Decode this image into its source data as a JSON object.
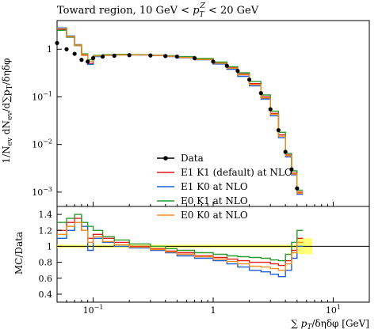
{
  "figure": {
    "title": "Toward region, 10 GeV < p_T^Z < 20 GeV",
    "xlabel": "∑ p_T/δηδφ [GeV]",
    "ylabel_top": "1/N_ev dN_ev/d∑p_T/δηδφ",
    "ylabel_bottom": "MC/Data",
    "legend_entries": [
      "Data",
      "E1 K1 (default) at NLO",
      "E1 K0 at NLO",
      "E0 K1 at NLO",
      "E0 K0 at NLO"
    ],
    "colors": {
      "data": "#000000",
      "e1k1": "#e41a1c",
      "e1k0": "#1f5fd6",
      "e0k1": "#2a9a2a",
      "e0k0": "#f28e1c",
      "band": "#ffff66"
    }
  },
  "chart_data": [
    {
      "panel": "main",
      "type": "line",
      "x_scale": "log",
      "y_scale": "log",
      "xlim": [
        0.05,
        20
      ],
      "ylim": [
        0.0005,
        4
      ],
      "x_ticklabels": [
        "10^-1",
        "1",
        "10^1"
      ],
      "y_ticklabels": [
        "10^-3",
        "10^-2",
        "10^-1",
        "1"
      ],
      "legend_placement": "lower-center",
      "x": [
        0.05,
        0.06,
        0.07,
        0.08,
        0.09,
        0.1,
        0.12,
        0.15,
        0.2,
        0.3,
        0.4,
        0.5,
        0.7,
        1.0,
        1.3,
        1.6,
        2.0,
        2.5,
        3.0,
        3.5,
        4.0,
        4.5,
        5.0
      ],
      "series": [
        {
          "name": "Data",
          "values": [
            1.35,
            1.0,
            0.8,
            0.6,
            0.55,
            0.65,
            0.7,
            0.73,
            0.75,
            0.74,
            0.72,
            0.7,
            0.65,
            0.55,
            0.45,
            0.35,
            0.23,
            0.12,
            0.055,
            0.02,
            0.007,
            0.003,
            0.0012
          ]
        },
        {
          "name": "E1 K1 (default) at NLO",
          "values": [
            2.6,
            1.8,
            1.2,
            0.75,
            0.5,
            0.72,
            0.75,
            0.76,
            0.76,
            0.74,
            0.71,
            0.68,
            0.62,
            0.52,
            0.41,
            0.3,
            0.19,
            0.1,
            0.045,
            0.016,
            0.006,
            0.0025,
            0.001
          ]
        },
        {
          "name": "E1 K0 at NLO",
          "values": [
            2.8,
            1.9,
            1.25,
            0.78,
            0.48,
            0.7,
            0.74,
            0.76,
            0.76,
            0.74,
            0.7,
            0.66,
            0.6,
            0.49,
            0.38,
            0.27,
            0.17,
            0.09,
            0.04,
            0.014,
            0.0055,
            0.0023,
            0.0009
          ]
        },
        {
          "name": "E0 K1 at NLO",
          "values": [
            2.5,
            1.8,
            1.2,
            0.8,
            0.6,
            0.74,
            0.77,
            0.78,
            0.77,
            0.75,
            0.73,
            0.7,
            0.64,
            0.54,
            0.43,
            0.32,
            0.21,
            0.11,
            0.05,
            0.018,
            0.0065,
            0.0028,
            0.0011
          ]
        },
        {
          "name": "E0 K0 at NLO",
          "values": [
            2.7,
            1.85,
            1.22,
            0.77,
            0.55,
            0.72,
            0.75,
            0.76,
            0.76,
            0.74,
            0.71,
            0.67,
            0.61,
            0.51,
            0.4,
            0.29,
            0.18,
            0.095,
            0.043,
            0.015,
            0.0058,
            0.0024,
            0.00095
          ]
        }
      ]
    },
    {
      "panel": "ratio",
      "type": "line",
      "x_scale": "log",
      "xlim": [
        0.05,
        20
      ],
      "ylim": [
        0.3,
        1.5
      ],
      "x_ticklabels": [
        "10^-1",
        "1",
        "10^1"
      ],
      "y_ticklabels": [
        "0.4",
        "0.6",
        "0.8",
        "1",
        "1.2",
        "1.4"
      ],
      "x": [
        0.05,
        0.06,
        0.07,
        0.08,
        0.09,
        0.1,
        0.12,
        0.15,
        0.2,
        0.3,
        0.4,
        0.5,
        0.7,
        1.0,
        1.3,
        1.6,
        2.0,
        2.5,
        3.0,
        3.5,
        4.0,
        4.5,
        5.0
      ],
      "series": [
        {
          "name": "E1 K1 (default) at NLO",
          "values": [
            1.2,
            1.3,
            1.35,
            1.2,
            1.1,
            1.15,
            1.1,
            1.05,
            1.0,
            0.97,
            0.94,
            0.92,
            0.88,
            0.86,
            0.84,
            0.82,
            0.8,
            0.8,
            0.78,
            0.76,
            0.82,
            0.95,
            1.1
          ]
        },
        {
          "name": "E1 K0 at NLO",
          "values": [
            1.1,
            1.2,
            1.3,
            1.25,
            0.95,
            1.1,
            1.05,
            1.0,
            0.98,
            0.95,
            0.92,
            0.88,
            0.85,
            0.82,
            0.78,
            0.74,
            0.7,
            0.68,
            0.65,
            0.62,
            0.7,
            0.85,
            1.0
          ]
        },
        {
          "name": "E0 K1 at NLO",
          "values": [
            1.3,
            1.35,
            1.4,
            1.3,
            1.25,
            1.2,
            1.12,
            1.08,
            1.03,
            1.0,
            0.97,
            0.95,
            0.92,
            0.9,
            0.88,
            0.87,
            0.86,
            0.85,
            0.83,
            0.82,
            0.9,
            1.05,
            1.2
          ]
        },
        {
          "name": "E0 K0 at NLO",
          "values": [
            1.15,
            1.25,
            1.3,
            1.2,
            1.05,
            1.12,
            1.06,
            1.02,
            0.99,
            0.96,
            0.93,
            0.9,
            0.87,
            0.84,
            0.81,
            0.78,
            0.75,
            0.74,
            0.72,
            0.7,
            0.78,
            0.92,
            1.05
          ]
        }
      ]
    }
  ]
}
